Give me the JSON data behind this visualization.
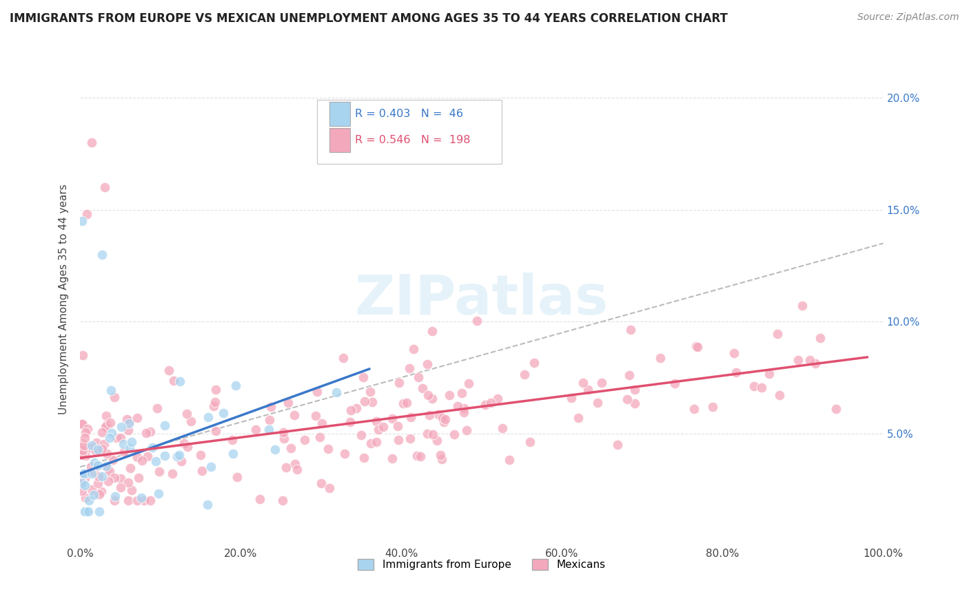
{
  "title": "IMMIGRANTS FROM EUROPE VS MEXICAN UNEMPLOYMENT AMONG AGES 35 TO 44 YEARS CORRELATION CHART",
  "source": "Source: ZipAtlas.com",
  "ylabel": "Unemployment Among Ages 35 to 44 years",
  "xlim": [
    0,
    100
  ],
  "ylim": [
    0,
    22
  ],
  "ytick_values": [
    0,
    5,
    10,
    15,
    20
  ],
  "xtick_values": [
    0,
    20,
    40,
    60,
    80,
    100
  ],
  "europe_color": "#a8d4f0",
  "mexico_color": "#f4a8bc",
  "europe_line_color": "#3a78c9",
  "mexico_line_color": "#e05070",
  "dash_line_color": "#bbbbbb",
  "R_europe": 0.403,
  "N_europe": 46,
  "R_mexico": 0.546,
  "N_mexico": 198,
  "background_color": "#ffffff",
  "grid_color": "#e0e0e0",
  "watermark": "ZIPatlas",
  "title_fontsize": 12,
  "source_fontsize": 10,
  "legend_text_color_europe": "#3a78c9",
  "legend_text_color_mexico": "#e05070",
  "right_axis_color": "#3a78c9"
}
